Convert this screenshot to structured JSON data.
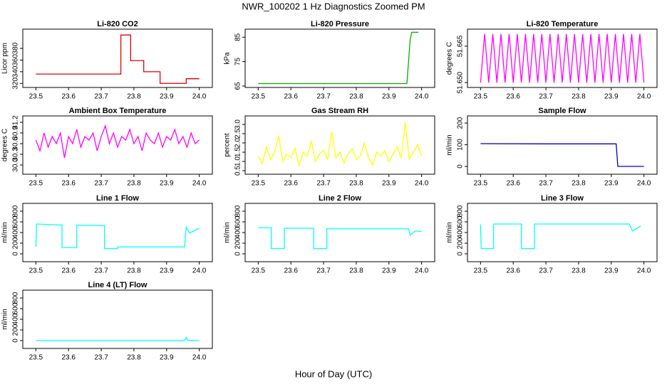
{
  "title": "NWR_100202  1 Hz Diagnostics Zoomed PM",
  "x_label": "Hour of Day (UTC)",
  "chart_data": [
    {
      "type": "line",
      "title": "Li-820 CO2",
      "y_label": "Licor ppm",
      "color": "#e00000",
      "x": [
        23.5,
        23.76,
        23.76,
        23.79,
        23.79,
        23.83,
        23.83,
        23.88,
        23.88,
        23.96,
        23.96,
        24.0
      ],
      "values": [
        336,
        336,
        403,
        403,
        359,
        359,
        340,
        340,
        320,
        320,
        328,
        328
      ],
      "xlim": [
        23.46,
        24.04
      ],
      "ylim": [
        313,
        413
      ],
      "xticks": [
        23.5,
        23.6,
        23.7,
        23.8,
        23.9,
        {
          "value": 24,
          "label": "24.0"
        }
      ],
      "yticks": [
        320,
        340,
        360,
        380
      ]
    },
    {
      "type": "line",
      "title": "Li-820 Pressure",
      "y_label": "kPa",
      "color": "#00b000",
      "x": [
        23.5,
        23.7,
        23.955,
        23.96,
        23.965,
        23.97,
        23.99
      ],
      "values": [
        66,
        66,
        66,
        75,
        84,
        87,
        87
      ],
      "xlim": [
        23.46,
        24.04
      ],
      "ylim": [
        64.4,
        88.3
      ],
      "xticks": [
        23.5,
        23.6,
        23.7,
        23.8,
        23.9,
        {
          "value": 24,
          "label": "24.0"
        }
      ],
      "yticks": [
        65,
        75,
        85
      ]
    },
    {
      "type": "line",
      "title": "Li-820 Temperature",
      "y_label": "degrees C",
      "color": "#ff00ff",
      "x": [
        23.5,
        23.5125,
        23.525,
        23.5375,
        23.55,
        23.5625,
        23.575,
        23.5875,
        23.6,
        23.6125,
        23.625,
        23.6375,
        23.65,
        23.6625,
        23.675,
        23.6875,
        23.7,
        23.7125,
        23.725,
        23.7375,
        23.75,
        23.7625,
        23.775,
        23.7875,
        23.8,
        23.8125,
        23.825,
        23.8375,
        23.85,
        23.8625,
        23.875,
        23.8875,
        23.9,
        23.9125,
        23.925,
        23.9375,
        23.95,
        23.9625,
        23.975,
        23.9875,
        24.0
      ],
      "values": [
        51.65,
        51.67,
        51.65,
        51.67,
        51.65,
        51.67,
        51.65,
        51.67,
        51.65,
        51.67,
        51.65,
        51.67,
        51.65,
        51.67,
        51.65,
        51.67,
        51.65,
        51.67,
        51.65,
        51.67,
        51.65,
        51.67,
        51.65,
        51.67,
        51.65,
        51.67,
        51.65,
        51.67,
        51.65,
        51.67,
        51.65,
        51.67,
        51.65,
        51.67,
        51.65,
        51.67,
        51.65,
        51.67,
        51.65,
        51.67,
        51.65
      ],
      "xlim": [
        23.46,
        24.04
      ],
      "ylim": [
        51.648,
        51.672
      ],
      "xticks": [
        23.5,
        23.6,
        23.7,
        23.8,
        23.9,
        {
          "value": 24,
          "label": "24.0"
        }
      ],
      "yticks": [
        {
          "value": 51.65,
          "label": "51.650"
        },
        {
          "value": 51.665,
          "label": "51.665"
        }
      ]
    },
    {
      "type": "line",
      "title": "Ambient Box Temperature",
      "y_label": "degrees C",
      "color": "#ff00ff",
      "x": [
        23.5,
        23.5125,
        23.525,
        23.5375,
        23.55,
        23.5625,
        23.575,
        23.5875,
        23.6,
        23.6125,
        23.625,
        23.6375,
        23.65,
        23.6625,
        23.675,
        23.6875,
        23.7,
        23.7125,
        23.725,
        23.7375,
        23.75,
        23.7625,
        23.775,
        23.7875,
        23.8,
        23.8125,
        23.825,
        23.8375,
        23.85,
        23.8625,
        23.875,
        23.8875,
        23.9,
        23.9125,
        23.925,
        23.9375,
        23.95,
        23.9625,
        23.975,
        23.9875,
        24.0
      ],
      "values": [
        30.7,
        30.4,
        30.9,
        30.5,
        30.8,
        30.6,
        30.9,
        30.2,
        30.8,
        30.6,
        31.0,
        30.5,
        30.8,
        30.7,
        30.9,
        30.4,
        30.8,
        31.1,
        30.6,
        30.9,
        30.5,
        30.8,
        30.7,
        31.0,
        30.6,
        30.8,
        30.4,
        30.9,
        30.7,
        30.6,
        30.9,
        30.5,
        30.8,
        30.7,
        31.0,
        30.6,
        30.8,
        30.5,
        30.9,
        30.6,
        30.7
      ],
      "xlim": [
        23.46,
        24.04
      ],
      "ylim": [
        29.74,
        31.38
      ],
      "xticks": [
        23.5,
        23.6,
        23.7,
        23.8,
        23.9,
        {
          "value": 24,
          "label": "24.0"
        }
      ],
      "yticks": [
        {
          "value": 30,
          "label": "30.0"
        },
        30.3,
        30.6,
        30.9,
        31.2
      ]
    },
    {
      "type": "line",
      "title": "Gas Stream RH",
      "y_label": "percent",
      "color": "#ffff00",
      "x": [
        23.5,
        23.5125,
        23.525,
        23.5375,
        23.55,
        23.5625,
        23.575,
        23.5875,
        23.6,
        23.6125,
        23.625,
        23.6375,
        23.65,
        23.6625,
        23.675,
        23.6875,
        23.7,
        23.7125,
        23.725,
        23.7375,
        23.75,
        23.7625,
        23.775,
        23.7875,
        23.8,
        23.8125,
        23.825,
        23.8375,
        23.85,
        23.8625,
        23.875,
        23.8875,
        23.9,
        23.9125,
        23.925,
        23.9375,
        23.95,
        23.9625,
        23.975,
        23.9875,
        24.0
      ],
      "values": [
        1.3,
        0.9,
        1.8,
        1.1,
        1.5,
        2.4,
        1.0,
        1.4,
        1.2,
        1.7,
        0.8,
        1.5,
        1.3,
        2.1,
        1.0,
        1.4,
        1.6,
        1.1,
        2.6,
        1.2,
        1.5,
        0.9,
        1.4,
        1.7,
        1.1,
        1.3,
        2.0,
        1.2,
        0.8,
        1.5,
        1.3,
        1.6,
        1.0,
        1.4,
        1.8,
        1.2,
        3.1,
        1.1,
        1.5,
        1.9,
        1.3
      ],
      "xlim": [
        23.46,
        24.04
      ],
      "ylim": [
        0.31,
        3.46
      ],
      "xticks": [
        23.5,
        23.6,
        23.7,
        23.8,
        23.9,
        {
          "value": 24,
          "label": "24.0"
        }
      ],
      "yticks": [
        0.5,
        {
          "value": 1,
          "label": "1.0"
        },
        1.5,
        {
          "value": 2,
          "label": "2.0"
        },
        2.5,
        {
          "value": 3,
          "label": "3.0"
        }
      ]
    },
    {
      "type": "line",
      "title": "Sample Flow",
      "y_label": "ml/min",
      "color": "#0000c0",
      "x": [
        23.5,
        23.7,
        23.915,
        23.92,
        24.0
      ],
      "values": [
        105,
        104,
        104,
        0,
        0
      ],
      "xlim": [
        23.46,
        24.04
      ],
      "ylim": [
        -36,
        233
      ],
      "xticks": [
        23.5,
        23.6,
        23.7,
        23.8,
        23.9,
        {
          "value": 24,
          "label": "24.0"
        }
      ],
      "yticks": [
        0,
        100,
        200
      ]
    },
    {
      "type": "line",
      "title": "Line 1 Flow",
      "y_label": "ml/min",
      "color": "#00ffff",
      "x": [
        23.5,
        23.502,
        23.58,
        23.58,
        23.625,
        23.625,
        23.71,
        23.71,
        23.75,
        23.75,
        23.955,
        23.96,
        23.97,
        24.0
      ],
      "values": [
        130,
        560,
        540,
        120,
        120,
        540,
        530,
        100,
        100,
        130,
        130,
        500,
        390,
        480
      ],
      "xlim": [
        23.46,
        24.04
      ],
      "ylim": [
        -147,
        947
      ],
      "xticks": [
        23.5,
        23.6,
        23.7,
        23.8,
        23.9,
        {
          "value": 24,
          "label": "24.0"
        }
      ],
      "yticks": [
        0,
        200,
        400,
        600,
        800
      ]
    },
    {
      "type": "line",
      "title": "Line 2 Flow",
      "y_label": "ml/min",
      "color": "#00ffff",
      "x": [
        23.5,
        23.54,
        23.54,
        23.58,
        23.58,
        23.67,
        23.67,
        23.71,
        23.71,
        23.96,
        23.965,
        23.98,
        24.0
      ],
      "values": [
        490,
        490,
        100,
        100,
        480,
        480,
        100,
        100,
        470,
        470,
        350,
        430,
        420
      ],
      "xlim": [
        23.46,
        24.04
      ],
      "ylim": [
        -147,
        947
      ],
      "xticks": [
        23.5,
        23.6,
        23.7,
        23.8,
        23.9,
        {
          "value": 24,
          "label": "24.0"
        }
      ],
      "yticks": [
        0,
        200,
        400,
        600,
        800
      ]
    },
    {
      "type": "line",
      "title": "Line 3 Flow",
      "y_label": "ml/min",
      "color": "#00ffff",
      "x": [
        23.5,
        23.502,
        23.54,
        23.54,
        23.625,
        23.625,
        23.665,
        23.665,
        23.955,
        23.965,
        23.99
      ],
      "values": [
        550,
        100,
        100,
        560,
        560,
        100,
        100,
        560,
        560,
        430,
        520
      ],
      "xlim": [
        23.46,
        24.04
      ],
      "ylim": [
        -147,
        947
      ],
      "xticks": [
        23.5,
        23.6,
        23.7,
        23.8,
        23.9,
        {
          "value": 24,
          "label": "24.0"
        }
      ],
      "yticks": [
        0,
        200,
        400,
        600,
        800
      ]
    },
    {
      "type": "line",
      "title": "Line 4 (LT) Flow",
      "y_label": "ml/min",
      "color": "#00ffff",
      "x": [
        23.5,
        23.955,
        23.96,
        23.965,
        24.0
      ],
      "values": [
        0,
        0,
        60,
        5,
        5
      ],
      "xlim": [
        23.46,
        24.04
      ],
      "ylim": [
        -147,
        947
      ],
      "xticks": [
        23.5,
        23.6,
        23.7,
        23.8,
        23.9,
        {
          "value": 24,
          "label": "24.0"
        }
      ],
      "yticks": [
        0,
        200,
        400,
        600,
        800
      ]
    }
  ]
}
